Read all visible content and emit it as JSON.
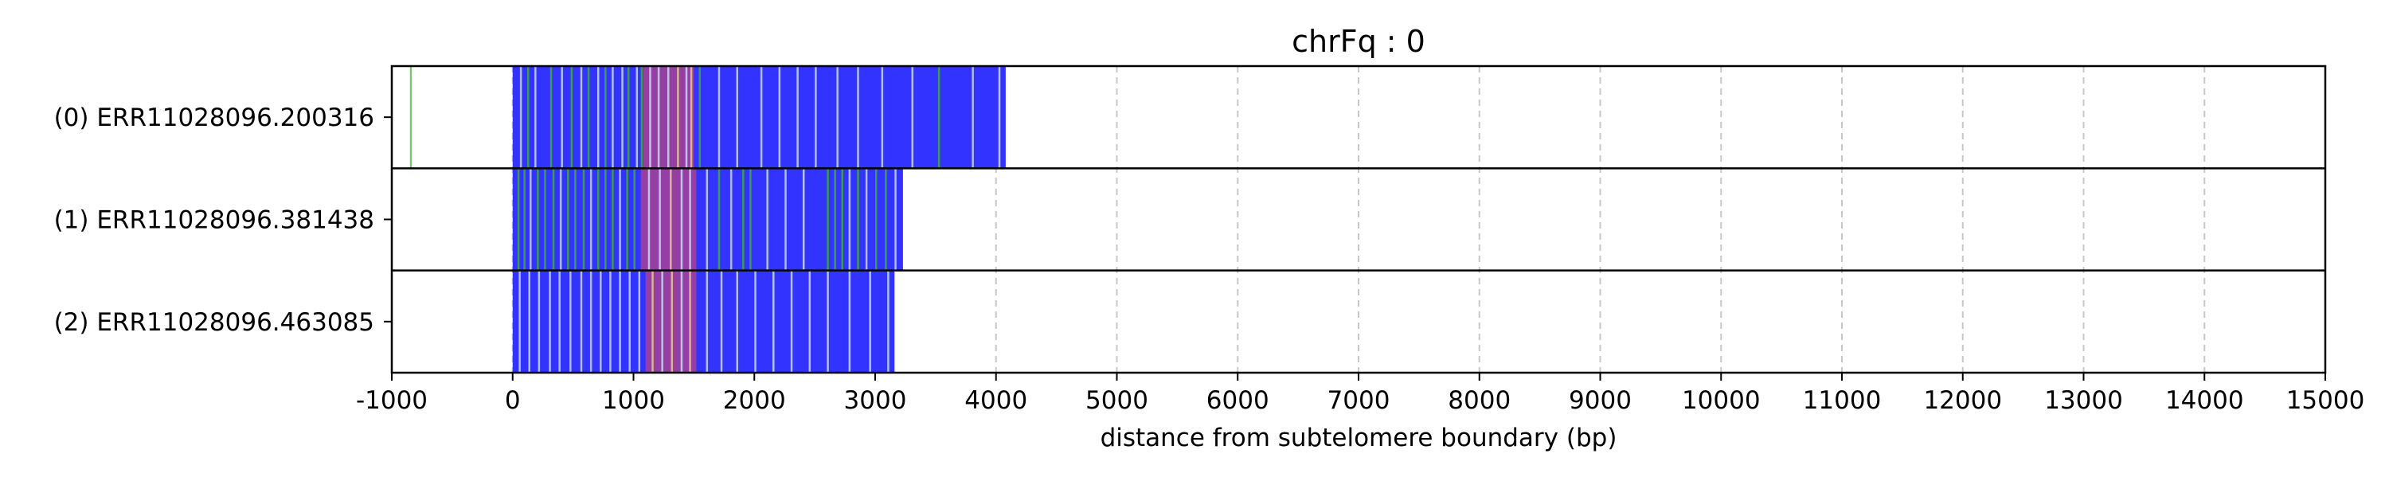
{
  "chart_data": {
    "type": "bar",
    "title": "chrFq : 0",
    "xlabel": "distance from subtelomere boundary (bp)",
    "ylabel": "",
    "xlim": [
      -1000,
      15000
    ],
    "xticks": [
      -1000,
      0,
      1000,
      2000,
      3000,
      4000,
      5000,
      6000,
      7000,
      8000,
      9000,
      10000,
      11000,
      12000,
      13000,
      14000,
      15000
    ],
    "xtick_labels": [
      "-1000",
      "0",
      "1000",
      "2000",
      "3000",
      "4000",
      "5000",
      "6000",
      "7000",
      "8000",
      "9000",
      "10000",
      "11000",
      "12000",
      "13000",
      "14000",
      "15000"
    ],
    "grid": "vertical dashed",
    "colors": {
      "base": "#3333ff",
      "green": "#3fae2f",
      "magenta": "#a0409a",
      "light": "#c8d8f0",
      "tan": "#e8c890",
      "gridline": "#c8c8c8"
    },
    "reads": [
      {
        "label": "(0) ERR11028096.200316",
        "start": 0,
        "end": 4080,
        "segments": [
          {
            "start": -850,
            "end": -835,
            "color": "green"
          },
          {
            "start": 1080,
            "end": 1500,
            "color": "magenta"
          }
        ],
        "stripes": [
          {
            "x": 60,
            "color": "light"
          },
          {
            "x": 120,
            "color": "green"
          },
          {
            "x": 180,
            "color": "light"
          },
          {
            "x": 310,
            "color": "green"
          },
          {
            "x": 400,
            "color": "light"
          },
          {
            "x": 480,
            "color": "green"
          },
          {
            "x": 560,
            "color": "light"
          },
          {
            "x": 620,
            "color": "green"
          },
          {
            "x": 700,
            "color": "light"
          },
          {
            "x": 760,
            "color": "green"
          },
          {
            "x": 820,
            "color": "light"
          },
          {
            "x": 900,
            "color": "light"
          },
          {
            "x": 950,
            "color": "green"
          },
          {
            "x": 1020,
            "color": "light"
          },
          {
            "x": 1060,
            "color": "green"
          },
          {
            "x": 1130,
            "color": "light"
          },
          {
            "x": 1200,
            "color": "light"
          },
          {
            "x": 1280,
            "color": "light"
          },
          {
            "x": 1360,
            "color": "tan"
          },
          {
            "x": 1430,
            "color": "light"
          },
          {
            "x": 1470,
            "color": "tan"
          },
          {
            "x": 1540,
            "color": "green"
          },
          {
            "x": 1700,
            "color": "light"
          },
          {
            "x": 1850,
            "color": "light"
          },
          {
            "x": 2050,
            "color": "light"
          },
          {
            "x": 2200,
            "color": "light"
          },
          {
            "x": 2350,
            "color": "light"
          },
          {
            "x": 2500,
            "color": "light"
          },
          {
            "x": 2680,
            "color": "light"
          },
          {
            "x": 2850,
            "color": "light"
          },
          {
            "x": 3050,
            "color": "light"
          },
          {
            "x": 3300,
            "color": "light"
          },
          {
            "x": 3520,
            "color": "green"
          },
          {
            "x": 3800,
            "color": "light"
          },
          {
            "x": 4020,
            "color": "light"
          }
        ]
      },
      {
        "label": "(1) ERR11028096.381438",
        "start": 0,
        "end": 3230,
        "segments": [
          {
            "start": 1060,
            "end": 1520,
            "color": "magenta"
          }
        ],
        "stripes": [
          {
            "x": 40,
            "color": "green"
          },
          {
            "x": 90,
            "color": "green"
          },
          {
            "x": 140,
            "color": "light"
          },
          {
            "x": 200,
            "color": "green"
          },
          {
            "x": 260,
            "color": "green"
          },
          {
            "x": 330,
            "color": "green"
          },
          {
            "x": 390,
            "color": "light"
          },
          {
            "x": 450,
            "color": "green"
          },
          {
            "x": 510,
            "color": "green"
          },
          {
            "x": 580,
            "color": "green"
          },
          {
            "x": 640,
            "color": "light"
          },
          {
            "x": 700,
            "color": "green"
          },
          {
            "x": 760,
            "color": "green"
          },
          {
            "x": 820,
            "color": "green"
          },
          {
            "x": 880,
            "color": "light"
          },
          {
            "x": 940,
            "color": "green"
          },
          {
            "x": 1000,
            "color": "green"
          },
          {
            "x": 1120,
            "color": "light"
          },
          {
            "x": 1210,
            "color": "light"
          },
          {
            "x": 1300,
            "color": "tan"
          },
          {
            "x": 1390,
            "color": "light"
          },
          {
            "x": 1460,
            "color": "light"
          },
          {
            "x": 1600,
            "color": "light"
          },
          {
            "x": 1700,
            "color": "green"
          },
          {
            "x": 1800,
            "color": "light"
          },
          {
            "x": 1900,
            "color": "green"
          },
          {
            "x": 1960,
            "color": "green"
          },
          {
            "x": 2100,
            "color": "light"
          },
          {
            "x": 2250,
            "color": "light"
          },
          {
            "x": 2400,
            "color": "light"
          },
          {
            "x": 2600,
            "color": "green"
          },
          {
            "x": 2660,
            "color": "green"
          },
          {
            "x": 2720,
            "color": "green"
          },
          {
            "x": 2780,
            "color": "light"
          },
          {
            "x": 2850,
            "color": "green"
          },
          {
            "x": 2920,
            "color": "light"
          },
          {
            "x": 3000,
            "color": "green"
          },
          {
            "x": 3080,
            "color": "green"
          },
          {
            "x": 3160,
            "color": "light"
          }
        ]
      },
      {
        "label": "(2) ERR11028096.463085",
        "start": 0,
        "end": 3160,
        "segments": [
          {
            "start": 1100,
            "end": 1520,
            "color": "magenta"
          }
        ],
        "stripes": [
          {
            "x": 50,
            "color": "light"
          },
          {
            "x": 130,
            "color": "light"
          },
          {
            "x": 210,
            "color": "light"
          },
          {
            "x": 300,
            "color": "light"
          },
          {
            "x": 380,
            "color": "light"
          },
          {
            "x": 470,
            "color": "light"
          },
          {
            "x": 560,
            "color": "light"
          },
          {
            "x": 640,
            "color": "light"
          },
          {
            "x": 720,
            "color": "light"
          },
          {
            "x": 800,
            "color": "light"
          },
          {
            "x": 880,
            "color": "light"
          },
          {
            "x": 960,
            "color": "light"
          },
          {
            "x": 1040,
            "color": "light"
          },
          {
            "x": 1150,
            "color": "tan"
          },
          {
            "x": 1230,
            "color": "light"
          },
          {
            "x": 1310,
            "color": "tan"
          },
          {
            "x": 1390,
            "color": "light"
          },
          {
            "x": 1460,
            "color": "tan"
          },
          {
            "x": 1600,
            "color": "light"
          },
          {
            "x": 1720,
            "color": "light"
          },
          {
            "x": 1850,
            "color": "light"
          },
          {
            "x": 2000,
            "color": "light"
          },
          {
            "x": 2150,
            "color": "light"
          },
          {
            "x": 2300,
            "color": "light"
          },
          {
            "x": 2450,
            "color": "light"
          },
          {
            "x": 2600,
            "color": "light"
          },
          {
            "x": 2780,
            "color": "light"
          },
          {
            "x": 2950,
            "color": "light"
          },
          {
            "x": 3100,
            "color": "light"
          }
        ]
      }
    ]
  }
}
